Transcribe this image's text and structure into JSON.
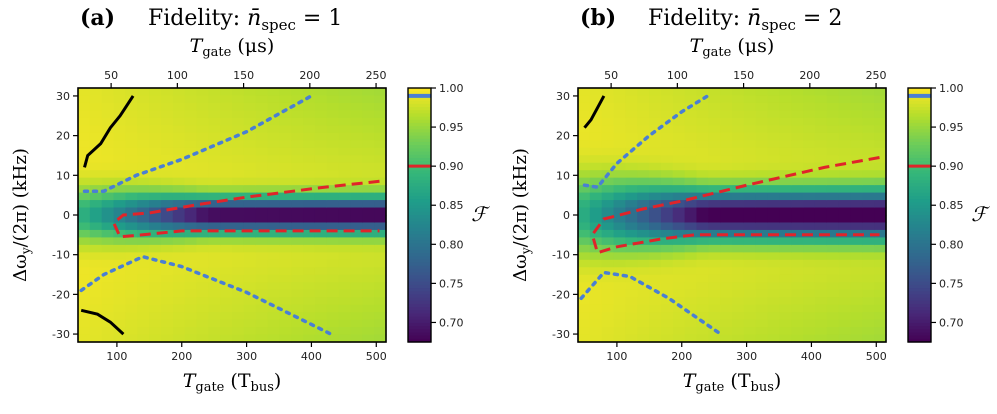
{
  "chart_data": [
    {
      "type": "heatmap",
      "panel_label": "(a)",
      "title_prefix": "Fidelity:",
      "nbar_symbol": "n̄",
      "nbar_subscript": "spec",
      "nbar_value": "= 1",
      "xlabel_main": "T",
      "xlabel_sub": "gate",
      "xlabel_unit_pre": "(T",
      "xlabel_unit_sub": "bus",
      "xlabel_unit_post": ")",
      "top_xlabel_main": "T",
      "top_xlabel_sub": "gate",
      "top_xlabel_unit": "(μs)",
      "ylabel": "Δω",
      "ylabel_sub": "y",
      "ylabel_tail": "/(2π) (kHz)",
      "xlim": [
        40,
        515
      ],
      "ylim": [
        -32,
        32
      ],
      "x_ticks": [
        100,
        200,
        300,
        400,
        500
      ],
      "y_ticks": [
        30,
        20,
        10,
        0,
        -10,
        -20,
        -30
      ],
      "top_xlim_us": [
        25,
        257.5
      ],
      "top_x_ticks": [
        50,
        100,
        150,
        200,
        250
      ],
      "heatmap": {
        "min_fidelity": 0.68,
        "center_dip": 0.32,
        "dip_width_khz": 3.5
      },
      "contours": {
        "black_solid": [
          [
            [
              50,
              12
            ],
            [
              55,
              15
            ],
            [
              75,
              18
            ],
            [
              90,
              22
            ],
            [
              105,
              25
            ],
            [
              125,
              30
            ]
          ],
          [
            [
              45,
              -24
            ],
            [
              70,
              -25
            ],
            [
              90,
              -27
            ],
            [
              110,
              -30
            ]
          ]
        ],
        "blue_dotted": [
          [
            [
              50,
              6
            ],
            [
              80,
              6
            ],
            [
              130,
              10
            ],
            [
              200,
              14
            ],
            [
              300,
              21
            ],
            [
              400,
              30
            ]
          ],
          [
            [
              45,
              -19
            ],
            [
              80,
              -15
            ],
            [
              140,
              -10.5
            ],
            [
              200,
              -13
            ],
            [
              300,
              -19.5
            ],
            [
              430,
              -30
            ]
          ]
        ],
        "red_dashed": [
          [
            [
              505,
              8.5
            ],
            [
              420,
              7
            ],
            [
              300,
              4.5
            ],
            [
              220,
              2.5
            ],
            [
              150,
              0.5
            ],
            [
              110,
              0
            ],
            [
              95,
              -2
            ],
            [
              105,
              -5.5
            ],
            [
              140,
              -5
            ],
            [
              200,
              -4
            ],
            [
              300,
              -4
            ],
            [
              505,
              -4
            ]
          ]
        ]
      }
    },
    {
      "type": "heatmap",
      "panel_label": "(b)",
      "title_prefix": "Fidelity:",
      "nbar_symbol": "n̄",
      "nbar_subscript": "spec",
      "nbar_value": "= 2",
      "xlabel_main": "T",
      "xlabel_sub": "gate",
      "xlabel_unit_pre": "(T",
      "xlabel_unit_sub": "bus",
      "xlabel_unit_post": ")",
      "top_xlabel_main": "T",
      "top_xlabel_sub": "gate",
      "top_xlabel_unit": "(μs)",
      "ylabel": "Δω",
      "ylabel_sub": "y",
      "ylabel_tail": "/(2π) (kHz)",
      "xlim": [
        40,
        515
      ],
      "ylim": [
        -32,
        32
      ],
      "x_ticks": [
        100,
        200,
        300,
        400,
        500
      ],
      "y_ticks": [
        30,
        20,
        10,
        0,
        -10,
        -20,
        -30
      ],
      "top_xlim_us": [
        25,
        257.5
      ],
      "top_x_ticks": [
        50,
        100,
        150,
        200,
        250
      ],
      "heatmap": {
        "min_fidelity": 0.68,
        "center_dip": 0.33,
        "dip_width_khz": 5.5
      },
      "contours": {
        "black_solid": [
          [
            [
              50,
              22
            ],
            [
              60,
              24
            ],
            [
              70,
              27
            ],
            [
              80,
              30
            ]
          ]
        ],
        "blue_dotted": [
          [
            [
              50,
              7.5
            ],
            [
              70,
              7
            ],
            [
              100,
              13
            ],
            [
              150,
              20
            ],
            [
              200,
              26
            ],
            [
              240,
              30
            ]
          ],
          [
            [
              45,
              -21
            ],
            [
              80,
              -14.5
            ],
            [
              120,
              -15.5
            ],
            [
              180,
              -21
            ],
            [
              260,
              -30
            ]
          ]
        ],
        "red_dashed": [
          [
            [
              505,
              14.5
            ],
            [
              420,
              12
            ],
            [
              300,
              7.5
            ],
            [
              200,
              3.5
            ],
            [
              140,
              1.5
            ],
            [
              80,
              -1
            ],
            [
              62,
              -5
            ],
            [
              70,
              -9.5
            ],
            [
              100,
              -8
            ],
            [
              170,
              -6
            ],
            [
              220,
              -5
            ],
            [
              505,
              -5
            ]
          ]
        ]
      }
    }
  ],
  "colorbars": [
    {
      "label": "ℱ",
      "ticks": [
        1.0,
        0.95,
        0.9,
        0.85,
        0.8,
        0.75,
        0.7
      ],
      "tick_labels": [
        "1.00",
        "0.95",
        "0.90",
        "0.85",
        "0.80",
        "0.75",
        "0.70"
      ],
      "range": [
        0.675,
        1.0
      ],
      "marker_blue": 0.99,
      "marker_red": 0.9
    },
    {
      "label": "ℱ",
      "ticks": [
        1.0,
        0.95,
        0.9,
        0.85,
        0.8,
        0.75,
        0.7
      ],
      "tick_labels": [
        "1.00",
        "0.95",
        "0.90",
        "0.85",
        "0.80",
        "0.75",
        "0.70"
      ],
      "range": [
        0.675,
        1.0
      ],
      "marker_blue": 0.99,
      "marker_red": 0.9
    }
  ],
  "colors": {
    "red_contour": "#e0242a",
    "blue_contour": "#4a7fd4",
    "black_contour": "#000000"
  }
}
